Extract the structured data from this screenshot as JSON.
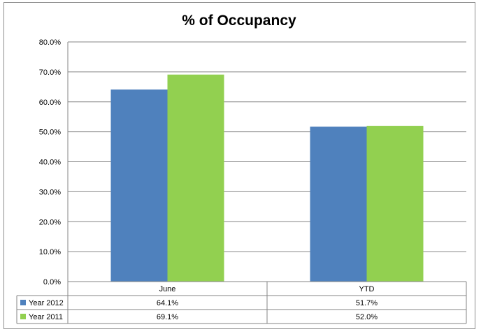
{
  "chart_data": {
    "type": "bar",
    "title": "% of Occupancy",
    "categories": [
      "June",
      "YTD"
    ],
    "series": [
      {
        "name": "Year 2012",
        "values": [
          64.1,
          51.7
        ],
        "labels": [
          "64.1%",
          "51.7%"
        ],
        "color": "#4f81bd"
      },
      {
        "name": "Year 2011",
        "values": [
          69.1,
          52.0
        ],
        "labels": [
          "69.1%",
          "52.0%"
        ],
        "color": "#92d050"
      }
    ],
    "yticks": [
      "0.0%",
      "10.0%",
      "20.0%",
      "30.0%",
      "40.0%",
      "50.0%",
      "60.0%",
      "70.0%",
      "80.0%"
    ],
    "ylim": [
      0,
      80
    ],
    "grid": true,
    "legend": "data-table",
    "xlabel": "",
    "ylabel": ""
  }
}
